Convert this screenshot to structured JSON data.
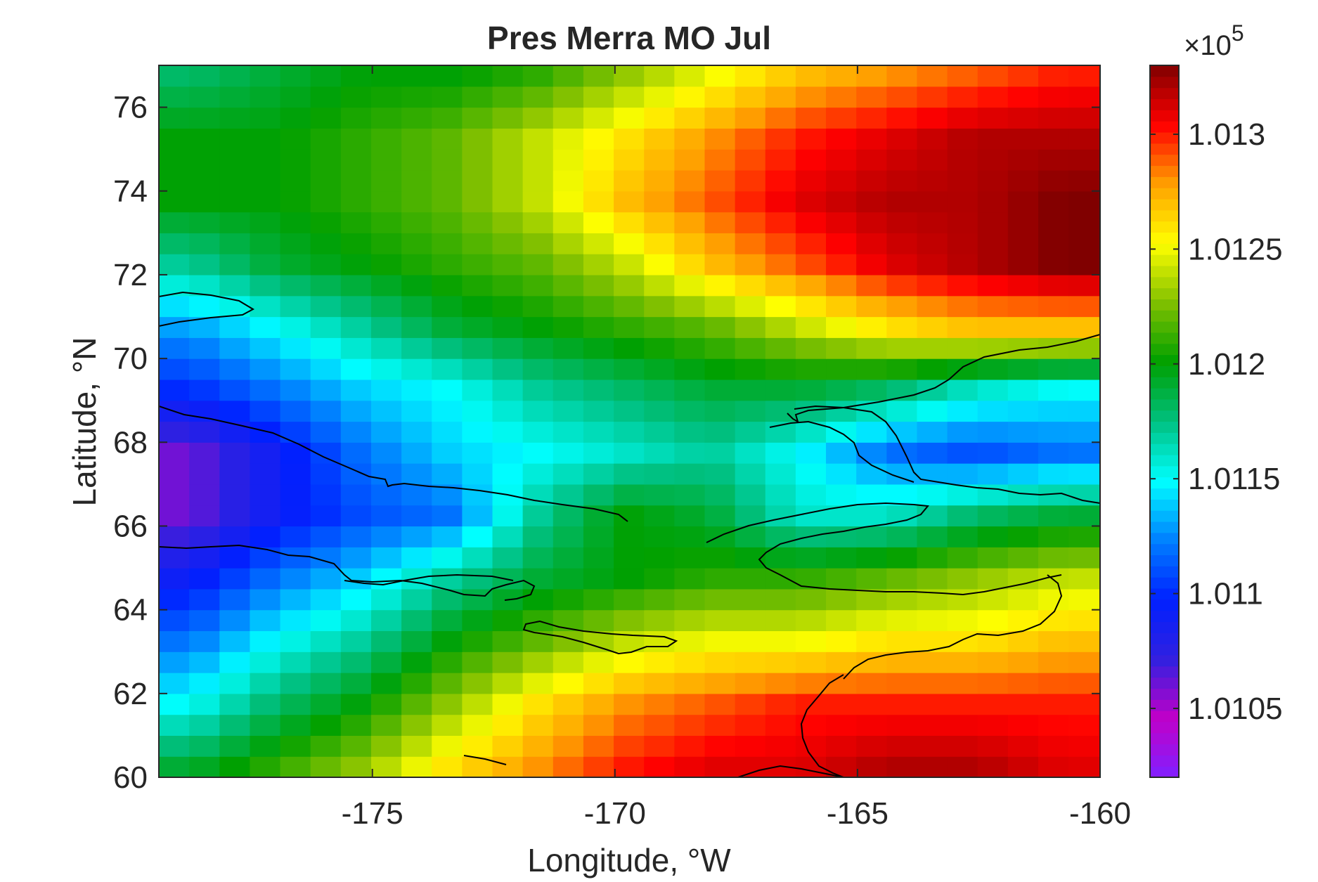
{
  "chart_data": {
    "type": "heatmap",
    "title": "Pres Merra MO Jul",
    "xlabel": "Longitude, °W",
    "ylabel": "Latitude, °N",
    "xlim": [
      -179.4,
      -160
    ],
    "ylim": [
      60,
      77
    ],
    "xticks": [
      -175,
      -170,
      -165,
      -160
    ],
    "xtick_labels": [
      "-175",
      "-170",
      "-165",
      "-160"
    ],
    "yticks": [
      60,
      62,
      64,
      66,
      68,
      70,
      72,
      74,
      76
    ],
    "ytick_labels": [
      "60",
      "62",
      "64",
      "66",
      "68",
      "70",
      "72",
      "74",
      "76"
    ],
    "grid": false,
    "colorbar": {
      "multiplier": "×10",
      "exponent": "5",
      "range": [
        1.0102,
        1.0133
      ],
      "ticks": [
        1.0105,
        1.011,
        1.0115,
        1.012,
        1.0125,
        1.013
      ],
      "tick_labels": [
        "1.0105",
        "1.011",
        "1.0115",
        "1.012",
        "1.0125",
        "1.013"
      ],
      "colormap": [
        "#8020ff",
        "#c000c8",
        "#3020e0",
        "#0020ff",
        "#0080ff",
        "#00ffff",
        "#00c080",
        "#00a000",
        "#80c000",
        "#ffff00",
        "#ffa000",
        "#ff0000",
        "#800000"
      ]
    },
    "grid_description": "Gridded surface pressure, approx. 0.625° lon × 0.5° lat cells; values in units of 10^5 Pa",
    "row_latitude_centers": [
      76.75,
      75.25,
      73.75,
      72.25,
      70.75,
      69.25,
      67.75,
      66.25,
      64.75,
      63.25,
      61.75,
      60.25
    ],
    "column_longitude_centers": [
      -178.8,
      -177.0,
      -175.2,
      -173.4,
      -171.6,
      -169.8,
      -168.0,
      -166.2,
      -164.4,
      -162.6,
      -160.8
    ],
    "values": [
      [
        1.0118,
        1.0119,
        1.012,
        1.012,
        1.0121,
        1.0123,
        1.0125,
        1.0127,
        1.0128,
        1.0129,
        1.013
      ],
      [
        1.012,
        1.012,
        1.0121,
        1.0122,
        1.0124,
        1.0126,
        1.0128,
        1.013,
        1.0131,
        1.0132,
        1.0132
      ],
      [
        1.012,
        1.012,
        1.0121,
        1.0122,
        1.0124,
        1.0127,
        1.0129,
        1.0131,
        1.0132,
        1.0132,
        1.0133
      ],
      [
        1.0117,
        1.0119,
        1.012,
        1.0121,
        1.0122,
        1.0124,
        1.0127,
        1.0129,
        1.0131,
        1.0132,
        1.0133
      ],
      [
        1.0113,
        1.0115,
        1.0117,
        1.0119,
        1.012,
        1.0121,
        1.0122,
        1.0124,
        1.0126,
        1.0127,
        1.0127
      ],
      [
        1.011,
        1.0112,
        1.0114,
        1.0115,
        1.0117,
        1.0118,
        1.0119,
        1.0119,
        1.0118,
        1.0116,
        1.0115
      ],
      [
        1.0106,
        1.0109,
        1.0112,
        1.0114,
        1.0115,
        1.0116,
        1.0117,
        1.0115,
        1.0112,
        1.0111,
        1.0112
      ],
      [
        1.0106,
        1.0109,
        1.0111,
        1.0112,
        1.0117,
        1.012,
        1.0119,
        1.0116,
        1.0116,
        1.0118,
        1.0119
      ],
      [
        1.0109,
        1.0112,
        1.0114,
        1.0117,
        1.0119,
        1.012,
        1.0121,
        1.0121,
        1.0122,
        1.0123,
        1.0124
      ],
      [
        1.0112,
        1.0115,
        1.0117,
        1.012,
        1.0122,
        1.0124,
        1.0125,
        1.0125,
        1.0126,
        1.0126,
        1.0127
      ],
      [
        1.0115,
        1.0118,
        1.012,
        1.0123,
        1.0126,
        1.0128,
        1.0129,
        1.013,
        1.013,
        1.013,
        1.013
      ],
      [
        1.0119,
        1.0121,
        1.0123,
        1.0126,
        1.0128,
        1.013,
        1.0131,
        1.0131,
        1.0132,
        1.0132,
        1.0131
      ]
    ]
  }
}
